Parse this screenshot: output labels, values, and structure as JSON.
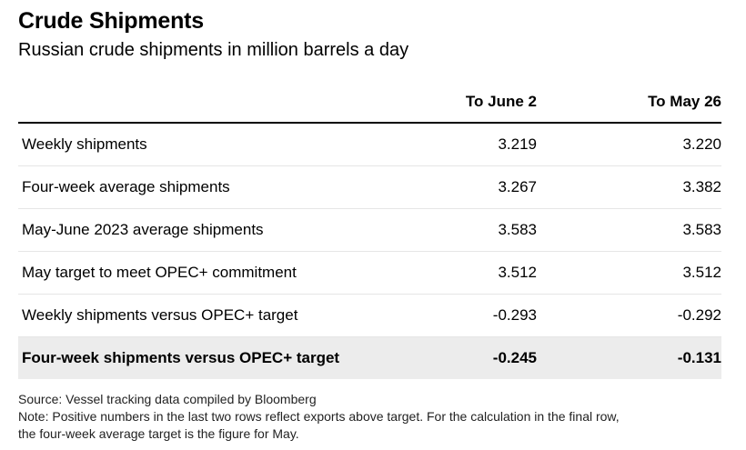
{
  "title": "Crude Shipments",
  "subtitle": "Russian crude shipments in million barrels a day",
  "chart_data": {
    "type": "table",
    "columns": [
      "To June 2",
      "To May 26"
    ],
    "rows": [
      {
        "label": "Weekly shipments",
        "values": [
          "3.219",
          "3.220"
        ]
      },
      {
        "label": "Four-week average shipments",
        "values": [
          "3.267",
          "3.382"
        ]
      },
      {
        "label": "May-June 2023 average shipments",
        "values": [
          "3.583",
          "3.583"
        ]
      },
      {
        "label": "May target to meet OPEC+ commitment",
        "values": [
          "3.512",
          "3.512"
        ]
      },
      {
        "label": "Weekly shipments versus OPEC+ target",
        "values": [
          "-0.293",
          "-0.292"
        ]
      },
      {
        "label": "Four-week shipments versus OPEC+ target",
        "values": [
          "-0.245",
          "-0.131"
        ]
      }
    ]
  },
  "footer": {
    "source": "Source: Vessel tracking data compiled by Bloomberg",
    "note_line1": "Note: Positive numbers in the last two rows reflect exports above target. For the calculation in the final row,",
    "note_line2": "the four-week average target is the figure for May."
  },
  "colors": {
    "highlight_row": "#ececec",
    "divider": "#e6e6e6",
    "header_rule": "#000000"
  }
}
